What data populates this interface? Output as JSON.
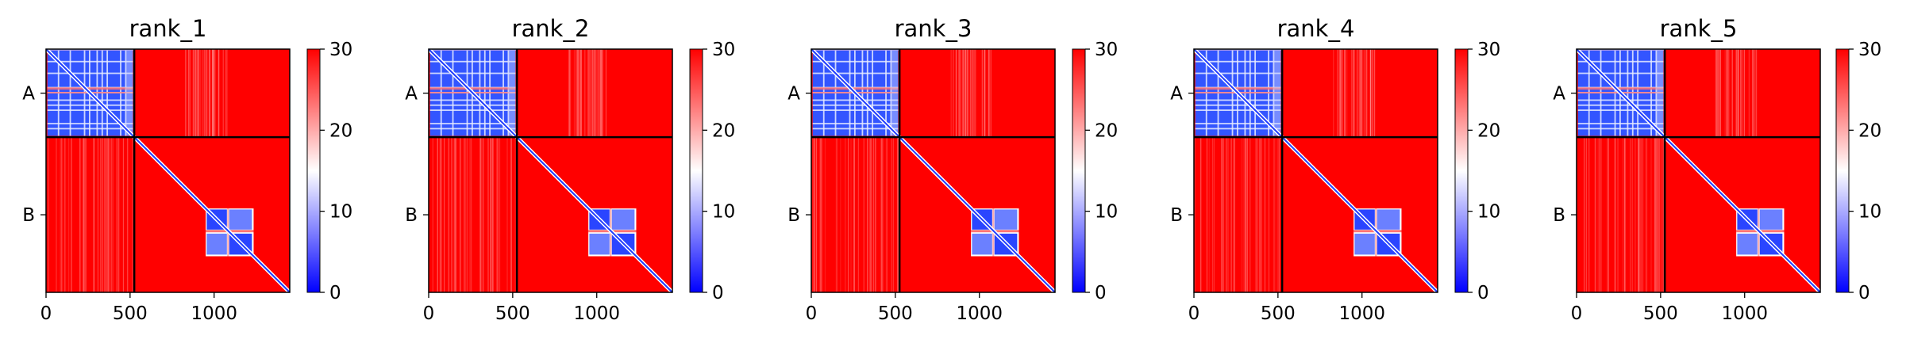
{
  "chart_data": [
    {
      "type": "heatmap",
      "title": "rank_1",
      "chains": [
        {
          "label": "A",
          "start": 0,
          "end": 525
        },
        {
          "label": "B",
          "start": 525,
          "end": 1450
        }
      ],
      "xlim": [
        0,
        1450
      ],
      "xticks": [
        0,
        500,
        1000
      ],
      "colorbar": {
        "min": 0,
        "max": 30,
        "ticks": [
          0,
          10,
          20,
          30
        ],
        "colors": [
          "#0000ff",
          "#ffffff",
          "#ff0000"
        ]
      }
    },
    {
      "type": "heatmap",
      "title": "rank_2",
      "chains": [
        {
          "label": "A",
          "start": 0,
          "end": 525
        },
        {
          "label": "B",
          "start": 525,
          "end": 1450
        }
      ],
      "xlim": [
        0,
        1450
      ],
      "xticks": [
        0,
        500,
        1000
      ],
      "colorbar": {
        "min": 0,
        "max": 30,
        "ticks": [
          0,
          10,
          20,
          30
        ],
        "colors": [
          "#0000ff",
          "#ffffff",
          "#ff0000"
        ]
      }
    },
    {
      "type": "heatmap",
      "title": "rank_3",
      "chains": [
        {
          "label": "A",
          "start": 0,
          "end": 525
        },
        {
          "label": "B",
          "start": 525,
          "end": 1450
        }
      ],
      "xlim": [
        0,
        1450
      ],
      "xticks": [
        0,
        500,
        1000
      ],
      "colorbar": {
        "min": 0,
        "max": 30,
        "ticks": [
          0,
          10,
          20,
          30
        ],
        "colors": [
          "#0000ff",
          "#ffffff",
          "#ff0000"
        ]
      }
    },
    {
      "type": "heatmap",
      "title": "rank_4",
      "chains": [
        {
          "label": "A",
          "start": 0,
          "end": 525
        },
        {
          "label": "B",
          "start": 525,
          "end": 1450
        }
      ],
      "xlim": [
        0,
        1450
      ],
      "xticks": [
        0,
        500,
        1000
      ],
      "colorbar": {
        "min": 0,
        "max": 30,
        "ticks": [
          0,
          10,
          20,
          30
        ],
        "colors": [
          "#0000ff",
          "#ffffff",
          "#ff0000"
        ]
      }
    },
    {
      "type": "heatmap",
      "title": "rank_5",
      "chains": [
        {
          "label": "A",
          "start": 0,
          "end": 525
        },
        {
          "label": "B",
          "start": 525,
          "end": 1450
        }
      ],
      "xlim": [
        0,
        1450
      ],
      "xticks": [
        0,
        500,
        1000
      ],
      "colorbar": {
        "min": 0,
        "max": 30,
        "ticks": [
          0,
          10,
          20,
          30
        ],
        "colors": [
          "#0000ff",
          "#ffffff",
          "#ff0000"
        ]
      }
    }
  ]
}
